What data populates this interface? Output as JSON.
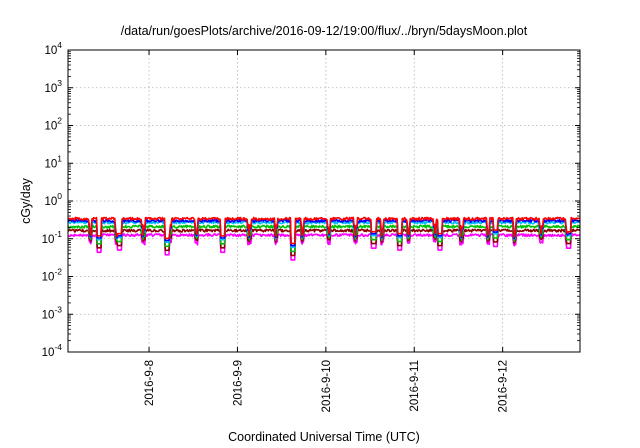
{
  "chart_data": {
    "type": "line",
    "title": "/data/run/goesPlots/archive/2016-09-12/19:00/flux/../bryn/5daysMoon.plot",
    "xlabel": "Coordinated Universal Time (UTC)",
    "ylabel": "cGy/day",
    "y_scale": "log",
    "ylim": [
      0.0001,
      10000
    ],
    "y_ticks": [
      {
        "base": "10",
        "exp": "-4",
        "value": 0.0001
      },
      {
        "base": "10",
        "exp": "-3",
        "value": 0.001
      },
      {
        "base": "10",
        "exp": "-2",
        "value": 0.01
      },
      {
        "base": "10",
        "exp": "-1",
        "value": 0.1
      },
      {
        "base": "10",
        "exp": "0",
        "value": 1
      },
      {
        "base": "10",
        "exp": "1",
        "value": 10
      },
      {
        "base": "10",
        "exp": "2",
        "value": 100
      },
      {
        "base": "10",
        "exp": "3",
        "value": 1000
      },
      {
        "base": "10",
        "exp": "4",
        "value": 10000
      }
    ],
    "xlim": [
      "2016-09-07T02:00",
      "2016-09-12T21:00"
    ],
    "x_ticks": [
      {
        "label": "2016-9-8",
        "value": "2016-09-08T00:00"
      },
      {
        "label": "2016-9-9",
        "value": "2016-09-09T00:00"
      },
      {
        "label": "2016-9-10",
        "value": "2016-09-10T00:00"
      },
      {
        "label": "2016-9-11",
        "value": "2016-09-11T00:00"
      },
      {
        "label": "2016-9-12",
        "value": "2016-09-12T00:00"
      }
    ],
    "grid": true,
    "series": [
      {
        "color": "#ff0000",
        "baseline": 0.34,
        "dip": 0.11
      },
      {
        "color": "#0000ff",
        "baseline": 0.3,
        "dip": 0.1
      },
      {
        "color": "#00bfff",
        "baseline": 0.27,
        "dip": 0.095
      },
      {
        "color": "#00c000",
        "baseline": 0.21,
        "dip": 0.085
      },
      {
        "color": "#8b0000",
        "baseline": 0.165,
        "dip": 0.075
      },
      {
        "color": "#ff00ff",
        "baseline": 0.125,
        "dip": 0.065
      }
    ],
    "spikes": [
      {
        "t": "2016-09-07T10:30",
        "factor": 0.35
      },
      {
        "t": "2016-09-07T16:00",
        "factor": 0.4
      },
      {
        "t": "2016-09-08T05:00",
        "factor": 0.3
      },
      {
        "t": "2016-09-08T20:00",
        "factor": 0.35
      },
      {
        "t": "2016-09-09T15:00",
        "factor": 0.22
      },
      {
        "t": "2016-09-10T13:00",
        "factor": 0.45
      },
      {
        "t": "2016-09-10T20:00",
        "factor": 0.4
      },
      {
        "t": "2016-09-11T07:00",
        "factor": 0.4
      },
      {
        "t": "2016-09-11T22:00",
        "factor": 0.5
      },
      {
        "t": "2016-09-12T18:00",
        "factor": 0.45
      }
    ]
  }
}
